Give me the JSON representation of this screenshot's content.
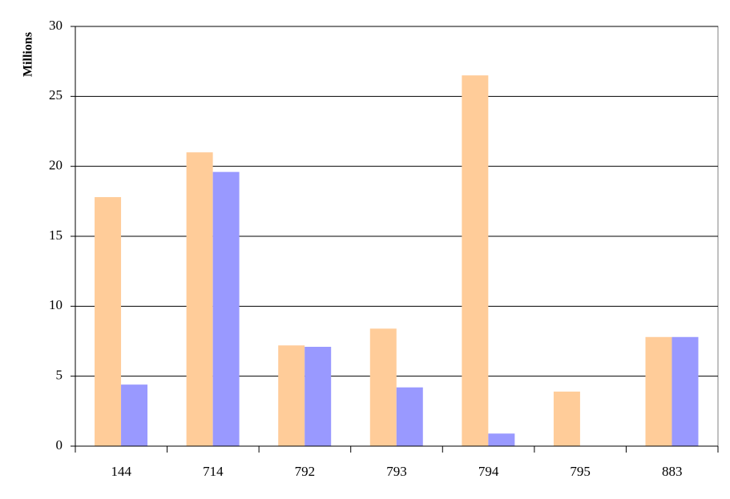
{
  "chart_data": {
    "type": "bar",
    "y_label": "Millions",
    "categories": [
      "144",
      "714",
      "792",
      "793",
      "794",
      "795",
      "883"
    ],
    "series": [
      {
        "color": "#ffcc99",
        "values": [
          17.8,
          21.0,
          7.2,
          8.4,
          26.5,
          3.9,
          7.8
        ]
      },
      {
        "color": "#9999ff",
        "values": [
          4.4,
          19.6,
          7.1,
          4.2,
          0.9,
          null,
          7.8
        ]
      }
    ],
    "ylim": [
      0,
      30
    ],
    "yticks": [
      0,
      5,
      10,
      15,
      20,
      25,
      30
    ],
    "grid": true
  }
}
